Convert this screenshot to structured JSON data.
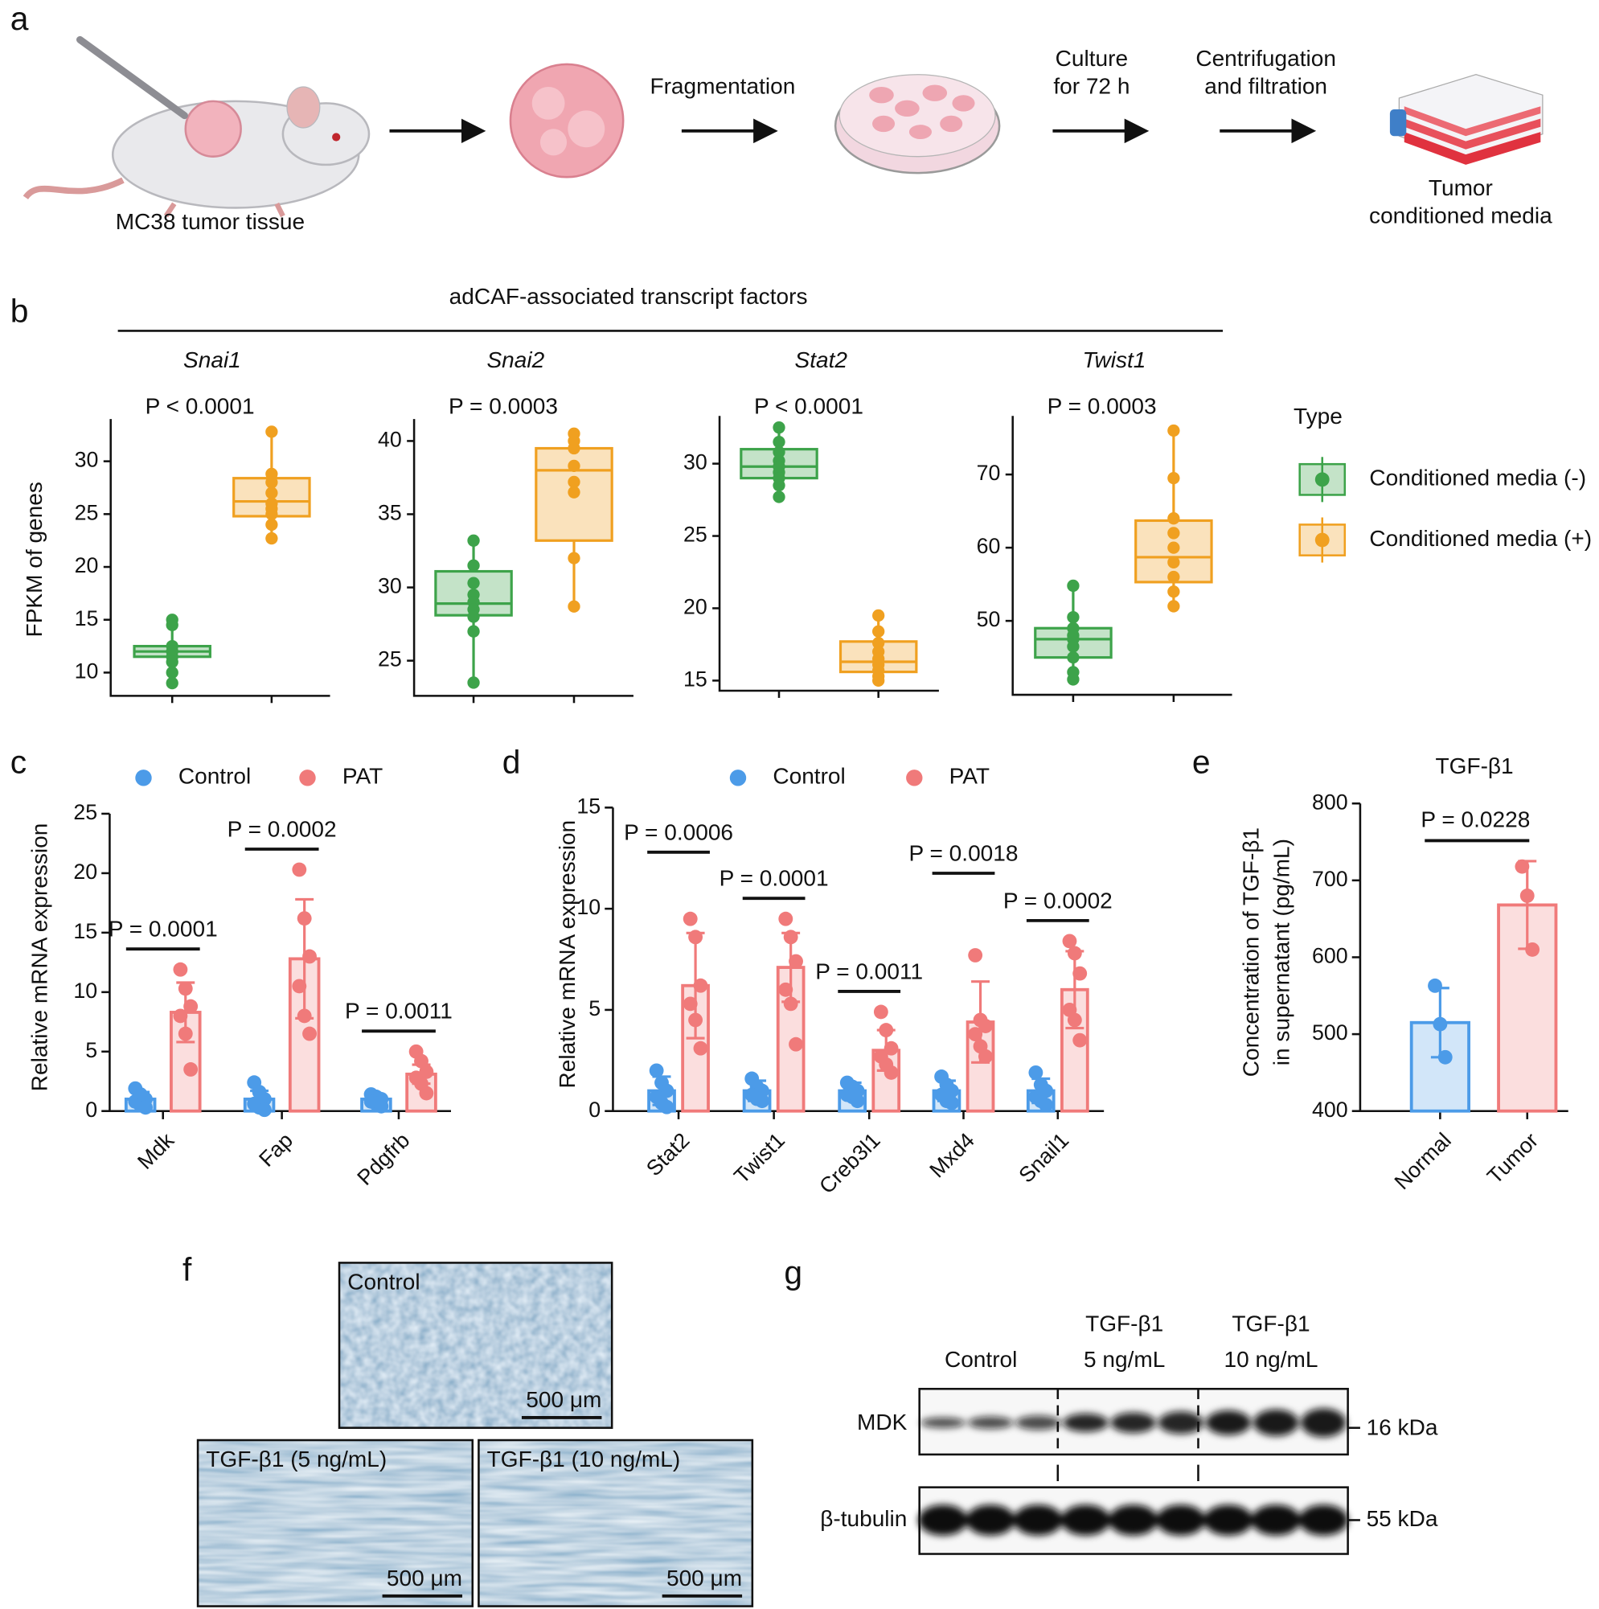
{
  "panel_labels": [
    "a",
    "b",
    "c",
    "d",
    "e",
    "f",
    "g"
  ],
  "workflow": {
    "labels": [
      [
        "MC38 tumor tissue"
      ],
      [
        "Fragmentation"
      ],
      [
        "Culture",
        "for 72 h"
      ],
      [
        "Centrifugation",
        "and filtration"
      ],
      [
        "Tumor",
        "conditioned media"
      ]
    ]
  },
  "panel_b": {
    "header": "adCAF-associated transcript factors",
    "ylabel": "FPKM of genes",
    "legend_title": "Type"
  },
  "chart_data": [
    {
      "type": "box",
      "title": "Snai1",
      "annotation": "P < 0.0001",
      "ylim": [
        7.8,
        34
      ],
      "yticks": [
        10,
        15,
        20,
        25,
        30
      ],
      "series": [
        {
          "name": "Conditioned media (-)",
          "color": "#3da34a",
          "box": {
            "min": 9,
            "q1": 11.5,
            "median": 12,
            "q3": 12.5,
            "max": 15
          },
          "points": [
            15,
            14.5,
            12.5,
            12,
            12,
            11.5,
            11,
            10,
            9
          ]
        },
        {
          "name": "Conditioned media (+)",
          "color": "#f0a020",
          "box": {
            "min": 22.7,
            "q1": 24.8,
            "median": 26.2,
            "q3": 28.4,
            "max": 32.8
          },
          "points": [
            32.8,
            28.8,
            28,
            27,
            26,
            25.5,
            25,
            24,
            22.7
          ]
        }
      ]
    },
    {
      "type": "box",
      "title": "Snai2",
      "annotation": "P  = 0.0003",
      "ylim": [
        22.6,
        41.5
      ],
      "yticks": [
        25,
        30,
        35,
        40
      ],
      "series": [
        {
          "name": "Conditioned media (-)",
          "color": "#3da34a",
          "box": {
            "min": 23.5,
            "q1": 28.1,
            "median": 28.9,
            "q3": 31.1,
            "max": 33.2
          },
          "points": [
            33.2,
            31.5,
            30.3,
            29.5,
            29,
            28.5,
            28,
            27,
            23.5
          ]
        },
        {
          "name": "Conditioned media (+)",
          "color": "#f0a020",
          "box": {
            "min": 28.7,
            "q1": 33.2,
            "median": 38,
            "q3": 39.5,
            "max": 40.5
          },
          "points": [
            40.5,
            40,
            39.5,
            38.3,
            37.2,
            36.5,
            32,
            28.7
          ]
        }
      ]
    },
    {
      "type": "box",
      "title": "Stat2",
      "annotation": "P  < 0.0001",
      "ylim": [
        14.3,
        33.3
      ],
      "yticks": [
        15,
        20,
        25,
        30
      ],
      "series": [
        {
          "name": "Conditioned media (-)",
          "color": "#3da34a",
          "box": {
            "min": 27.7,
            "q1": 29,
            "median": 29.8,
            "q3": 31,
            "max": 32.5
          },
          "points": [
            32.5,
            31.5,
            30.8,
            30.2,
            29.8,
            29.4,
            29,
            28.5,
            27.7
          ]
        },
        {
          "name": "Conditioned media (+)",
          "color": "#f0a020",
          "box": {
            "min": 15,
            "q1": 15.6,
            "median": 16.3,
            "q3": 17.7,
            "max": 19.5
          },
          "points": [
            19.5,
            18.4,
            17.6,
            17,
            16.5,
            16.1,
            15.7,
            15.3,
            15
          ]
        }
      ]
    },
    {
      "type": "box",
      "title": "Twist1",
      "annotation": "P  = 0.0003",
      "ylim": [
        39.9,
        78
      ],
      "yticks": [
        50,
        60,
        70
      ],
      "series": [
        {
          "name": "Conditioned media (-)",
          "color": "#3da34a",
          "box": {
            "min": 42,
            "q1": 45,
            "median": 47.5,
            "q3": 49,
            "max": 54.8
          },
          "points": [
            54.8,
            50.5,
            49,
            48,
            47.5,
            46.5,
            45,
            43,
            42
          ]
        },
        {
          "name": "Conditioned media (+)",
          "color": "#f0a020",
          "box": {
            "min": 52,
            "q1": 55.3,
            "median": 58.7,
            "q3": 63.7,
            "max": 76
          },
          "points": [
            76,
            69.5,
            64,
            62,
            60,
            58,
            56,
            54,
            52
          ]
        }
      ]
    },
    {
      "type": "bar",
      "ylabel": "Relative mRNA expression",
      "ylim": [
        0,
        25
      ],
      "yticks": [
        0,
        5,
        10,
        15,
        20,
        25
      ],
      "categories": [
        "Mdk",
        "Fap",
        "Pdgfrb"
      ],
      "annotations": [
        "P = 0.0001",
        "P = 0.0002",
        "P = 0.0011"
      ],
      "series": [
        {
          "name": "Control",
          "color": "#4c9be8",
          "values": [
            1,
            1,
            1
          ],
          "errors": [
            0.6,
            0.7,
            0.4
          ],
          "points": [
            [
              1.9,
              1.4,
              1.0,
              0.8,
              0.5,
              0.3
            ],
            [
              2.4,
              1.6,
              1.0,
              0.6,
              0.3,
              0.1
            ],
            [
              1.4,
              1.2,
              1.0,
              0.8,
              0.6,
              0.4
            ]
          ]
        },
        {
          "name": "PAT",
          "color": "#f07a7a",
          "values": [
            8.3,
            12.8,
            3.1
          ],
          "errors": [
            2.5,
            5,
            0.8
          ],
          "points": [
            [
              11.9,
              10.3,
              8.8,
              8.0,
              6.5,
              3.5
            ],
            [
              20.3,
              16.2,
              13.0,
              10.5,
              8.0,
              6.5
            ],
            [
              5.0,
              4.2,
              3.3,
              2.8,
              2.3,
              1.5
            ]
          ]
        }
      ]
    },
    {
      "type": "bar",
      "ylabel": "Relative mRNA expression",
      "ylim": [
        0,
        15
      ],
      "yticks": [
        0,
        5,
        10,
        15
      ],
      "categories": [
        "Stat2",
        "Twist1",
        "Creb3l1",
        "Mxd4",
        "Snail1"
      ],
      "annotations": [
        "P = 0.0006",
        "P = 0.0001",
        "P = 0.0011",
        "P = 0.0018",
        "P = 0.0002"
      ],
      "series": [
        {
          "name": "Control",
          "color": "#4c9be8",
          "values": [
            1,
            1,
            1,
            1,
            1
          ],
          "errors": [
            0.7,
            0.5,
            0.4,
            0.5,
            0.6
          ],
          "points": [
            [
              2.0,
              1.4,
              1.0,
              0.7,
              0.4,
              0.2
            ],
            [
              1.6,
              1.2,
              1.0,
              0.8,
              0.6,
              0.5
            ],
            [
              1.4,
              1.2,
              1.0,
              0.8,
              0.7,
              0.5
            ],
            [
              1.7,
              1.3,
              1.0,
              0.8,
              0.5,
              0.4
            ],
            [
              1.9,
              1.3,
              1.0,
              0.7,
              0.5,
              0.3
            ]
          ]
        },
        {
          "name": "PAT",
          "color": "#f07a7a",
          "values": [
            6.2,
            7.1,
            3.0,
            4.4,
            6.0
          ],
          "errors": [
            2.6,
            1.7,
            1.0,
            2.0,
            1.9
          ],
          "points": [
            [
              9.5,
              8.6,
              6.2,
              5.3,
              4.5,
              3.1
            ],
            [
              9.5,
              8.6,
              7.4,
              6.0,
              5.3,
              3.3
            ],
            [
              4.9,
              4.0,
              3.1,
              2.7,
              2.3,
              1.9
            ],
            [
              7.7,
              4.5,
              4.2,
              3.8,
              3.2,
              2.7
            ],
            [
              8.4,
              7.8,
              6.8,
              5.0,
              4.5,
              3.5
            ]
          ]
        }
      ]
    },
    {
      "type": "bar",
      "title": "TGF-β1",
      "ylabel": [
        "Concentration of TGF-β1",
        "in supernatant (pg/mL)"
      ],
      "ylim": [
        400,
        800
      ],
      "yticks": [
        400,
        500,
        600,
        700,
        800
      ],
      "categories": [
        "Normal",
        "Tumor"
      ],
      "annotation": "P = 0.0228",
      "colors": [
        "#4c9be8",
        "#f07a7a"
      ],
      "values": [
        515,
        668
      ],
      "errors": [
        45,
        57
      ],
      "points": [
        [
          563,
          513,
          470
        ],
        [
          718,
          680,
          610
        ]
      ]
    }
  ],
  "micrographs": [
    {
      "label": "Control",
      "scale_bar": "500 μm"
    },
    {
      "label": "TGF-β1 (5 ng/mL)",
      "scale_bar": "500 μm"
    },
    {
      "label": "TGF-β1 (10 ng/mL)",
      "scale_bar": "500 μm"
    }
  ],
  "western_blot": {
    "columns": [
      [
        "Control"
      ],
      [
        "TGF-β1",
        "5 ng/mL"
      ],
      [
        "TGF-β1",
        "10 ng/mL"
      ]
    ],
    "rows": [
      {
        "name": "MDK",
        "size": "16 kDa"
      },
      {
        "name": "β-tubulin",
        "size": "55 kDa"
      }
    ]
  }
}
